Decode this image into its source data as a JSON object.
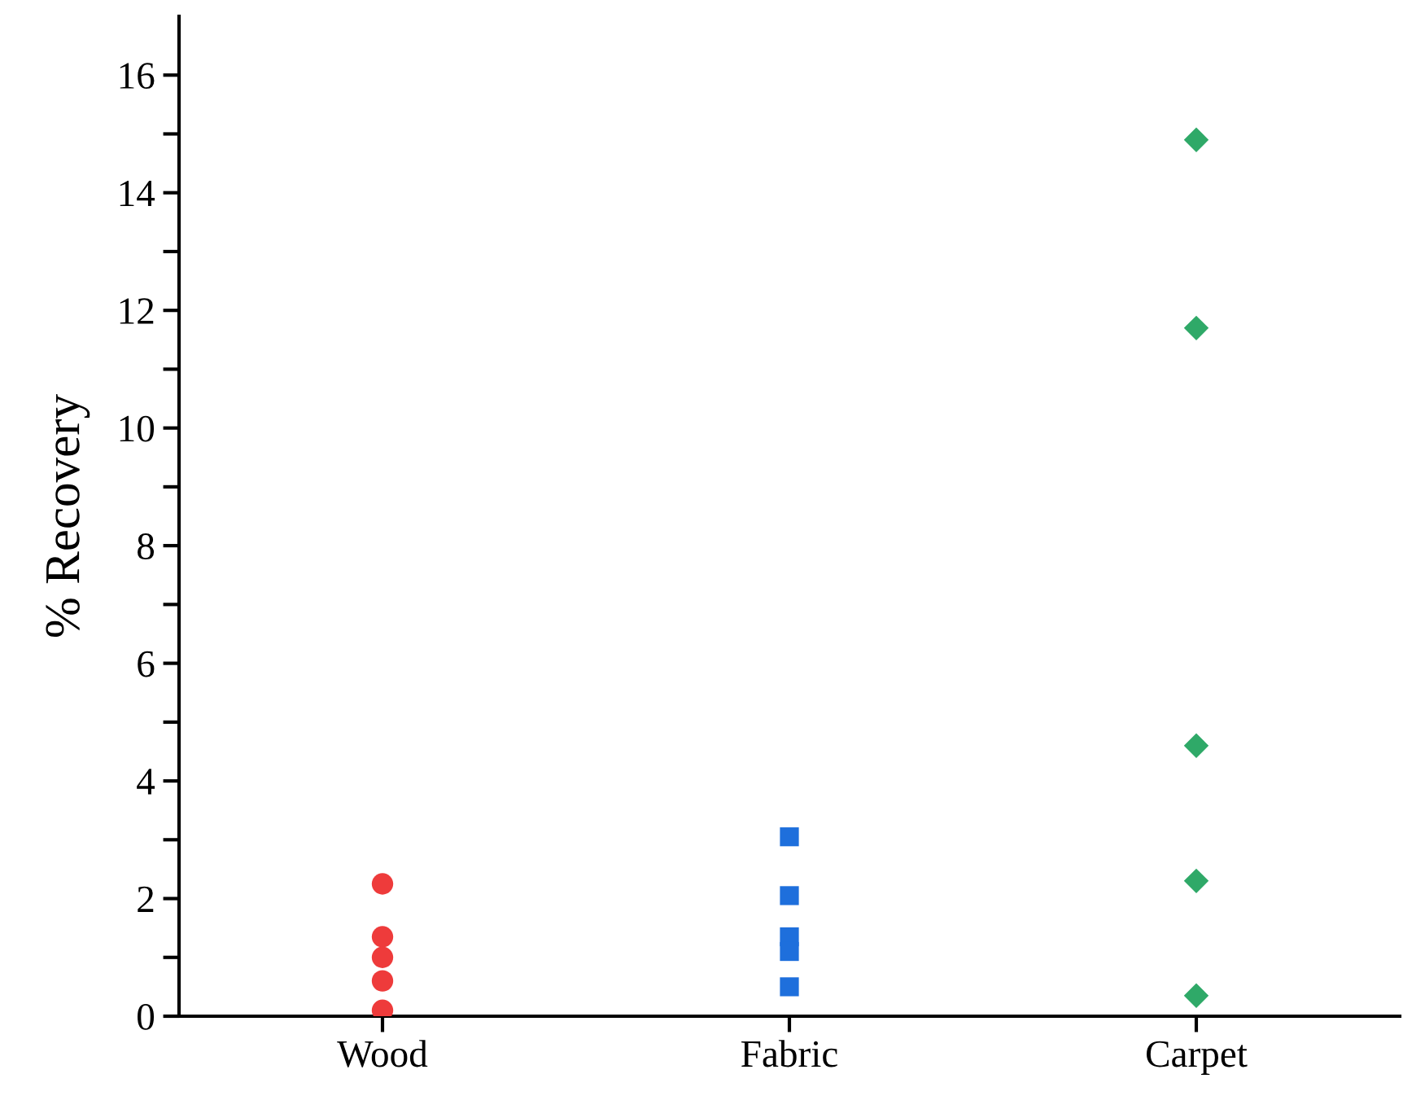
{
  "chart_data": {
    "type": "scatter",
    "ylabel": "% Recovery",
    "categories": [
      "Wood",
      "Fabric",
      "Carpet"
    ],
    "ylim": [
      0,
      17
    ],
    "yticks": [
      0,
      {
        "value": 1,
        "label": null
      },
      2,
      {
        "value": 3,
        "label": null
      },
      4,
      {
        "value": 5,
        "label": null
      },
      6,
      {
        "value": 7,
        "label": null
      },
      8,
      {
        "value": 9,
        "label": null
      },
      10,
      {
        "value": 11,
        "label": null
      },
      12,
      {
        "value": 13,
        "label": null
      },
      14,
      {
        "value": 15,
        "label": null
      },
      16
    ],
    "grid": false,
    "legend": false,
    "series": [
      {
        "x": [
          "Wood",
          "Wood",
          "Wood",
          "Wood",
          "Wood"
        ],
        "values": [
          2.25,
          1.35,
          1.0,
          0.6,
          0.1
        ],
        "color": "#ee3b3b",
        "marker": "circle"
      },
      {
        "x": [
          "Fabric",
          "Fabric",
          "Fabric",
          "Fabric",
          "Fabric"
        ],
        "values": [
          3.05,
          2.05,
          1.35,
          1.1,
          0.5
        ],
        "color": "#1e6fdc",
        "marker": "square"
      },
      {
        "x": [
          "Carpet",
          "Carpet",
          "Carpet",
          "Carpet",
          "Carpet"
        ],
        "values": [
          14.9,
          11.7,
          4.6,
          2.3,
          0.35
        ],
        "color": "#2fa968",
        "marker": "diamond"
      }
    ]
  }
}
